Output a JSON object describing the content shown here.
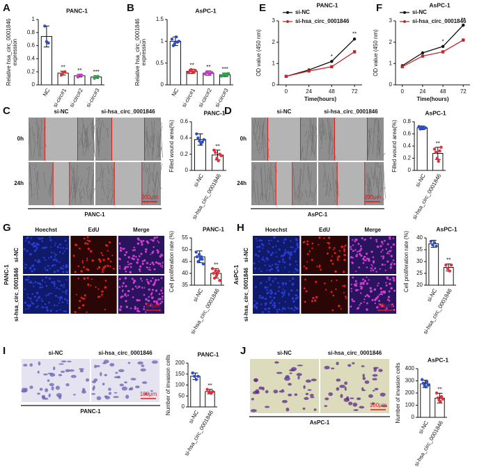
{
  "panel_labels": [
    "A",
    "B",
    "E",
    "F",
    "C",
    "D",
    "G",
    "H",
    "I",
    "J"
  ],
  "chart_data": [
    {
      "type": "bar",
      "title": "PANC-1",
      "ylabel": [
        "Relative hsa_circ_0001846",
        "expression"
      ],
      "categories": [
        "NC",
        "si-circ#1",
        "si-circ#2",
        "si-circ#3"
      ],
      "values": [
        0.74,
        0.18,
        0.14,
        0.12
      ],
      "errors": [
        0.16,
        0.03,
        0.02,
        0.02
      ],
      "points": [
        [
          0.9,
          0.66,
          0.64
        ],
        [
          0.15,
          0.19,
          0.2
        ],
        [
          0.12,
          0.15,
          0.15
        ],
        [
          0.1,
          0.12,
          0.13
        ]
      ],
      "annotations": [
        null,
        "**",
        "**",
        "***"
      ],
      "colors": [
        "#2b4fc7",
        "#e0303a",
        "#c73ac7",
        "#2aa64a"
      ],
      "ylim": [
        0,
        1
      ],
      "yticks": [
        0,
        0.2,
        0.4,
        0.6,
        0.8,
        1
      ]
    },
    {
      "type": "bar",
      "title": "AsPC-1",
      "ylabel": [
        "Relative hsa_circ_0001846",
        "expression"
      ],
      "categories": [
        "NC",
        "si-circ#1",
        "si-circ#2",
        "si-circ#3"
      ],
      "values": [
        1.0,
        0.31,
        0.27,
        0.23
      ],
      "errors": [
        0.1,
        0.05,
        0.05,
        0.04
      ],
      "points": [
        [
          1.05,
          0.9,
          0.95,
          1.1,
          0.98,
          1.0
        ],
        [
          0.28,
          0.32,
          0.35,
          0.3,
          0.29,
          0.33
        ],
        [
          0.25,
          0.28,
          0.3,
          0.24,
          0.27,
          0.28
        ],
        [
          0.2,
          0.22,
          0.25,
          0.24,
          0.21,
          0.26
        ]
      ],
      "annotations": [
        null,
        "**",
        "**",
        "***"
      ],
      "colors": [
        "#2b4fc7",
        "#e0303a",
        "#c73ac7",
        "#2aa64a"
      ],
      "ylim": [
        0,
        1.5
      ],
      "yticks": [
        0,
        0.5,
        1,
        1.5
      ]
    },
    {
      "type": "line",
      "title": "PANC-1",
      "ylabel": "OD value (450 nm)",
      "xlabel": "Time(hours)",
      "x": [
        0,
        24,
        48,
        72
      ],
      "xlim": [
        -8,
        80
      ],
      "xticks": [
        0,
        24,
        48,
        72
      ],
      "ylim": [
        0,
        3
      ],
      "yticks": [
        0,
        1,
        2,
        3
      ],
      "series": [
        {
          "name": "si-NC",
          "color": "#111111",
          "values": [
            0.4,
            0.7,
            1.1,
            2.15
          ],
          "errors": [
            0.03,
            0.04,
            0.05,
            0.06
          ]
        },
        {
          "name": "si-hsa_circ_0001846",
          "color": "#c0282d",
          "values": [
            0.4,
            0.65,
            0.85,
            1.55
          ],
          "errors": [
            0.03,
            0.03,
            0.04,
            0.08
          ]
        }
      ],
      "annotations": [
        null,
        null,
        "*",
        "**"
      ]
    },
    {
      "type": "line",
      "title": "AsPC-1",
      "ylabel": "OD value (450 nm)",
      "xlabel": "Time(hours)",
      "x": [
        0,
        24,
        48,
        72
      ],
      "xlim": [
        -8,
        80
      ],
      "xticks": [
        0,
        24,
        48,
        72
      ],
      "ylim": [
        0,
        3
      ],
      "yticks": [
        0,
        1,
        2,
        3
      ],
      "series": [
        {
          "name": "si-NC",
          "color": "#111111",
          "values": [
            0.9,
            1.5,
            1.8,
            2.8
          ],
          "errors": [
            0.05,
            0.04,
            0.05,
            0.07
          ]
        },
        {
          "name": "si-hsa_circ_0001846",
          "color": "#c0282d",
          "values": [
            0.85,
            1.35,
            1.55,
            2.1
          ],
          "errors": [
            0.04,
            0.04,
            0.05,
            0.08
          ]
        }
      ],
      "annotations": [
        null,
        null,
        "*",
        "**"
      ]
    },
    {
      "type": "bar",
      "title": "PANC-1",
      "ylabel": "Filled wound area(%)",
      "categories": [
        "si-NC",
        "si-hsa_circ_0001846"
      ],
      "values": [
        0.38,
        0.19
      ],
      "errors": [
        0.07,
        0.06
      ],
      "points": [
        [
          0.45,
          0.4,
          0.36,
          0.33,
          0.35,
          0.38
        ],
        [
          0.25,
          0.22,
          0.15,
          0.12,
          0.2,
          0.18
        ]
      ],
      "annotations": [
        null,
        "**"
      ],
      "colors": [
        "#2b4fc7",
        "#e0303a"
      ],
      "ylim": [
        0,
        0.6
      ],
      "yticks": [
        0,
        0.2,
        0.4,
        0.6
      ]
    },
    {
      "type": "bar",
      "title": "AsPC-1",
      "ylabel": "Filled wound area(%)",
      "categories": [
        "si-NC",
        "si-hsa_circ_0001846"
      ],
      "values": [
        0.7,
        0.28
      ],
      "errors": [
        0.03,
        0.1
      ],
      "points": [
        [
          0.72,
          0.68,
          0.7,
          0.71,
          0.69,
          0.7
        ],
        [
          0.35,
          0.3,
          0.2,
          0.15,
          0.32,
          0.38
        ]
      ],
      "annotations": [
        null,
        "**"
      ],
      "colors": [
        "#2b4fc7",
        "#e0303a"
      ],
      "ylim": [
        0,
        0.8
      ],
      "yticks": [
        0,
        0.2,
        0.4,
        0.6,
        0.8
      ]
    },
    {
      "type": "bar",
      "title": "PANC-1",
      "ylabel": "Cell proliferation rate (%)",
      "categories": [
        "si-NC",
        "si-hsa_circ_0001846"
      ],
      "values": [
        47,
        40
      ],
      "errors": [
        2.5,
        2
      ],
      "points": [
        [
          49,
          47,
          45,
          48,
          46,
          47,
          46,
          44
        ],
        [
          42,
          40,
          38,
          41,
          39,
          40,
          41,
          37
        ]
      ],
      "annotations": [
        null,
        "**"
      ],
      "colors": [
        "#2b4fc7",
        "#e0303a"
      ],
      "ylim": [
        35,
        55
      ],
      "yticks": [
        35,
        40,
        45,
        50,
        55
      ]
    },
    {
      "type": "bar",
      "title": "AsPC-1",
      "ylabel": "Cell proliferation rate (%)",
      "categories": [
        "si-NC",
        "si-hsa_circ_0001846"
      ],
      "values": [
        37.5,
        27.5
      ],
      "errors": [
        1.5,
        1.5
      ],
      "points": [
        [
          38.5,
          37,
          38,
          36.5
        ],
        [
          28.5,
          27,
          26,
          28.5
        ]
      ],
      "annotations": [
        null,
        "**"
      ],
      "colors": [
        "#2b4fc7",
        "#e0303a"
      ],
      "ylim": [
        20,
        40
      ],
      "yticks": [
        20,
        25,
        30,
        35,
        40
      ]
    },
    {
      "type": "bar",
      "title": "PANC-1",
      "ylabel": "Number of invasion cells",
      "categories": [
        "si-NC",
        "si-hsa_circ_0001846"
      ],
      "values": [
        140,
        70
      ],
      "errors": [
        15,
        10
      ],
      "points": [
        [
          155,
          140,
          125,
          140
        ],
        [
          80,
          68,
          62,
          70
        ]
      ],
      "annotations": [
        null,
        "**"
      ],
      "colors": [
        "#2b4fc7",
        "#e0303a"
      ],
      "ylim": [
        0,
        200
      ],
      "yticks": [
        0,
        50,
        100,
        150,
        200
      ]
    },
    {
      "type": "bar",
      "title": "AsPC-1",
      "ylabel": "Number of invasion cells",
      "categories": [
        "si-NC",
        "si-hsa_circ_0001846"
      ],
      "values": [
        275,
        158
      ],
      "errors": [
        30,
        40
      ],
      "points": [
        [
          310,
          280,
          260,
          250,
          290,
          265
        ],
        [
          200,
          160,
          140,
          130,
          170,
          150
        ]
      ],
      "annotations": [
        null,
        "**"
      ],
      "colors": [
        "#2b4fc7",
        "#e0303a"
      ],
      "ylim": [
        0,
        400
      ],
      "yticks": [
        0,
        100,
        200,
        300,
        400
      ]
    }
  ],
  "micrographs": [
    {
      "col_labels": [
        "si-NC",
        "si-hsa_circ_0001846"
      ],
      "row_labels": [
        "0h",
        "24h"
      ],
      "scale": "200μm",
      "caption": "PANC-1"
    },
    {
      "col_labels": [
        "si-NC",
        "si-hsa_circ_0001846"
      ],
      "row_labels": [
        "0h",
        "24h"
      ],
      "scale": "200μm",
      "caption": "AsPC-1"
    },
    {
      "col_labels": [
        "Hoechst",
        "EdU",
        "Merge"
      ],
      "row_labels": [
        "si-NC",
        "si-hsa_circ_0001846"
      ],
      "side_label": "PANC-1",
      "scale": "50μm"
    },
    {
      "col_labels": [
        "Hoechst",
        "EdU",
        "Merge"
      ],
      "row_labels": [
        "si-NC",
        "si-hsa_circ_0001846"
      ],
      "side_label": "AsPC-1",
      "scale": "50μm"
    },
    {
      "col_labels": [
        "si-NC",
        "si-hsa_circ_0001846"
      ],
      "scale": "100μm",
      "caption": "PANC-1"
    },
    {
      "col_labels": [
        "si-NC",
        "si-hsa_circ_0001846"
      ],
      "scale": "100μm",
      "caption": "AsPC-1"
    }
  ]
}
